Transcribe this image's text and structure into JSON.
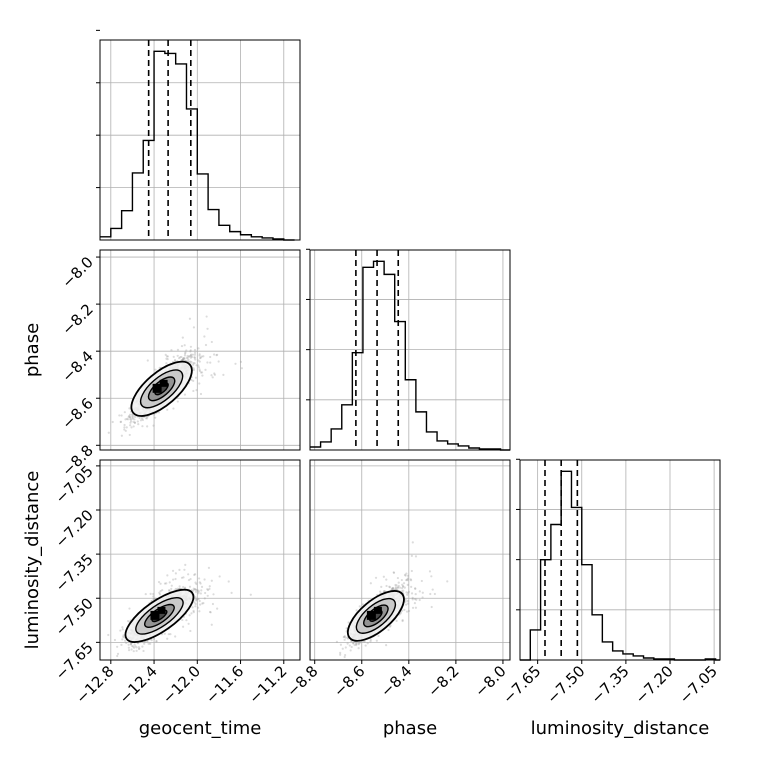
{
  "chart_data": {
    "type": "corner",
    "title": "",
    "parameters": [
      {
        "key": "geocent_time",
        "label": "geocent_time",
        "range": [
          -12.9,
          -11.05
        ],
        "ticks": [
          -12.8,
          -12.4,
          -12.0,
          -11.6,
          -11.2
        ],
        "tick_labels": [
          "−12.8",
          "−12.4",
          "−12.0",
          "−11.6",
          "−11.2"
        ],
        "quantiles": [
          -12.45,
          -12.27,
          -12.06
        ]
      },
      {
        "key": "phase",
        "label": "phase",
        "range": [
          -8.82,
          -7.97
        ],
        "ticks": [
          -8.8,
          -8.6,
          -8.4,
          -8.2,
          -8.0
        ],
        "tick_labels": [
          "−8.8",
          "−8.6",
          "−8.4",
          "−8.2",
          "−8.0"
        ],
        "quantiles": [
          -8.625,
          -8.535,
          -8.445
        ]
      },
      {
        "key": "luminosity_distance",
        "label": "luminosity_distance",
        "range": [
          -7.71,
          -7.03
        ],
        "ticks": [
          -7.65,
          -7.5,
          -7.35,
          -7.2,
          -7.05
        ],
        "tick_labels": [
          "−7.65",
          "−7.50",
          "−7.35",
          "−7.20",
          "−7.05"
        ],
        "quantiles": [
          -7.625,
          -7.57,
          -7.515
        ]
      }
    ],
    "histograms": [
      {
        "param": "geocent_time",
        "edges": [
          -12.9,
          -12.8,
          -12.7,
          -12.6,
          -12.5,
          -12.4,
          -12.3,
          -12.2,
          -12.1,
          -12.0,
          -11.9,
          -11.8,
          -11.7,
          -11.6,
          -11.5,
          -11.4,
          -11.3,
          -11.2,
          -11.1
        ],
        "counts": [
          3,
          11,
          28,
          64,
          95,
          180,
          178,
          168,
          125,
          63,
          29,
          14,
          8,
          5,
          3,
          2,
          1,
          0
        ]
      },
      {
        "param": "phase",
        "edges": [
          -8.82,
          -8.775,
          -8.73,
          -8.685,
          -8.64,
          -8.595,
          -8.55,
          -8.505,
          -8.46,
          -8.415,
          -8.37,
          -8.325,
          -8.28,
          -8.235,
          -8.19,
          -8.145,
          -8.1,
          -8.055,
          -8.01,
          -7.97
        ],
        "counts": [
          3,
          8,
          21,
          45,
          97,
          182,
          188,
          175,
          128,
          70,
          38,
          18,
          9,
          6,
          4,
          2,
          1,
          1,
          0
        ]
      },
      {
        "param": "luminosity_distance",
        "edges": [
          -7.71,
          -7.675,
          -7.64,
          -7.605,
          -7.57,
          -7.535,
          -7.5,
          -7.465,
          -7.43,
          -7.395,
          -7.36,
          -7.325,
          -7.29,
          -7.255,
          -7.22,
          -7.185,
          -7.15,
          -7.115,
          -7.08,
          -7.045,
          -7.03
        ],
        "counts": [
          0,
          30,
          100,
          135,
          188,
          152,
          95,
          45,
          18,
          9,
          6,
          4,
          2,
          1,
          1,
          0,
          0,
          0,
          1,
          0
        ]
      }
    ],
    "joint_2d": [
      {
        "x": "geocent_time",
        "y": "phase",
        "center": [
          -12.33,
          -8.56
        ],
        "sd": [
          0.13,
          0.06
        ],
        "rho": 0.85
      },
      {
        "x": "geocent_time",
        "y": "luminosity_distance",
        "center": [
          -12.35,
          -7.56
        ],
        "sd": [
          0.14,
          0.045
        ],
        "rho": 0.8
      },
      {
        "x": "phase",
        "y": "luminosity_distance",
        "center": [
          -8.54,
          -7.56
        ],
        "sd": [
          0.055,
          0.045
        ],
        "rho": 0.82
      }
    ],
    "grid": true,
    "colors": {
      "line": "#000000",
      "grid": "#b0b0b0",
      "points": "#9a9a9a",
      "fill": [
        "#f2f2f2",
        "#c4c4c4",
        "#8a8a8a",
        "#3a3a3a",
        "#000000"
      ]
    }
  }
}
